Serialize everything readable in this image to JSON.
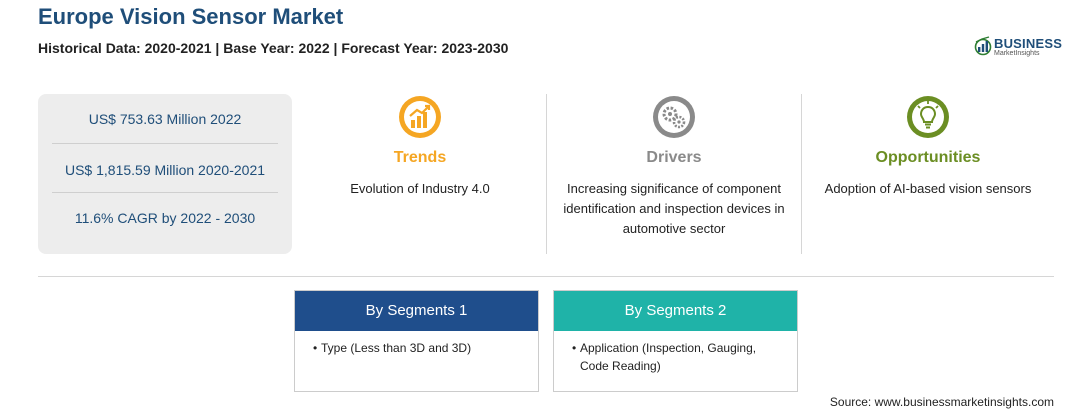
{
  "header": {
    "title": "Europe Vision Sensor Market",
    "subtitle": "Historical Data: 2020-2021 | Base Year: 2022 | Forecast Year: 2023-2030"
  },
  "logo": {
    "name": "BUSINESS",
    "tagline": "MarketInsights",
    "color": "#1f4e79",
    "icon": "globe-chart-icon"
  },
  "stats": {
    "items": [
      "US$ 753.63 Million 2022",
      "US$ 1,815.59 Million 2020-2021",
      "11.6% CAGR by 2022 - 2030"
    ]
  },
  "columns": [
    {
      "heading": "Trends",
      "body": "Evolution of Industry 4.0",
      "color": "#f5a623",
      "icon": "trend-chart-icon"
    },
    {
      "heading": "Drivers",
      "body": "Increasing significance of component identification and inspection devices in automotive sector",
      "color": "#8a8a8a",
      "icon": "gears-icon"
    },
    {
      "heading": "Opportunities",
      "body": "Adoption of AI-based vision sensors",
      "color": "#6b8e23",
      "icon": "lightbulb-icon"
    }
  ],
  "segments": [
    {
      "title": "By Segments 1",
      "item": "Type (Less than 3D and 3D)",
      "color": "#1f4e8c"
    },
    {
      "title": "By Segments 2",
      "item": "Application (Inspection, Gauging, Code Reading)",
      "color": "#1fb3a8"
    }
  ],
  "footer": {
    "source": "Source: www.businessmarketinsights.com"
  }
}
